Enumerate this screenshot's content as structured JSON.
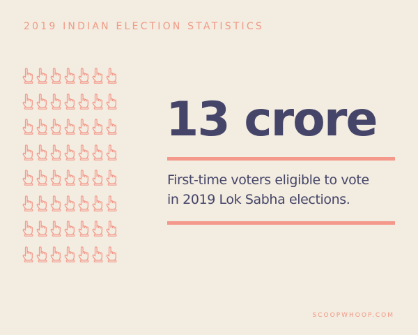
{
  "header": {
    "title": "2019 INDIAN ELECTION STATISTICS"
  },
  "icon_grid": {
    "icon": "inked-finger-hand-icon",
    "rows": 8,
    "columns": 7,
    "color": "#f3988a"
  },
  "stat": {
    "value": "13 crore",
    "description_lines": [
      "First-time voters eligible to vote",
      "in 2019 Lok Sabha elections."
    ]
  },
  "footer": {
    "brand": "SCOOPWHOOP.COM"
  },
  "colors": {
    "background": "#f3ece0",
    "accent": "#f3988a",
    "text_dark": "#454569"
  }
}
